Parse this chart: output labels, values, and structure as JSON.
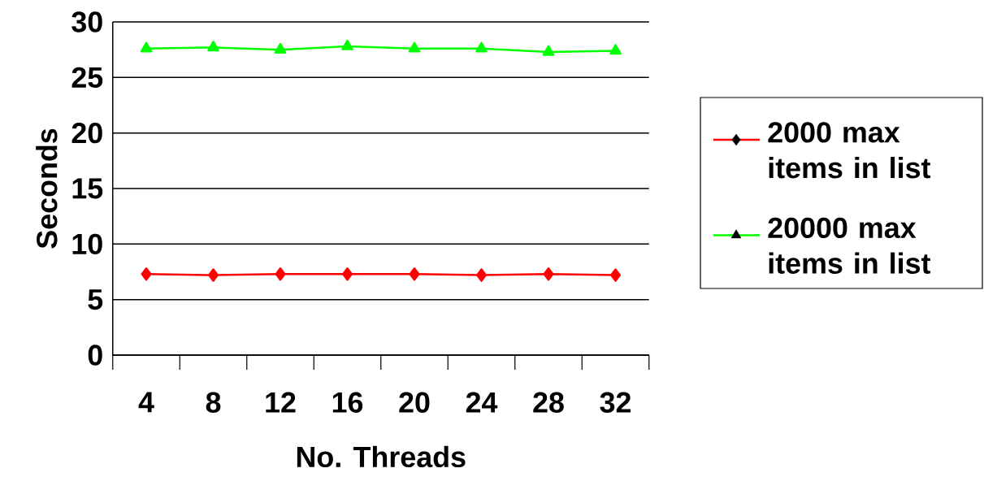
{
  "chart_data": {
    "type": "line",
    "xlabel": "No. Threads",
    "ylabel": "Seconds",
    "categories": [
      "4",
      "8",
      "12",
      "16",
      "20",
      "24",
      "28",
      "32"
    ],
    "series": [
      {
        "name": "2000 max items in list",
        "color": "#ff0000",
        "marker": "diamond",
        "values": [
          7.3,
          7.2,
          7.3,
          7.3,
          7.3,
          7.2,
          7.3,
          7.2
        ]
      },
      {
        "name": "20000 max items in list",
        "color": "#00ff00",
        "marker": "triangle",
        "values": [
          27.6,
          27.7,
          27.5,
          27.8,
          27.6,
          27.6,
          27.3,
          27.4
        ]
      }
    ],
    "ylim": [
      0,
      30
    ],
    "yticks": [
      0,
      5,
      10,
      15,
      20,
      25,
      30
    ],
    "grid": "y",
    "legend": "right",
    "line_style": "solid"
  }
}
